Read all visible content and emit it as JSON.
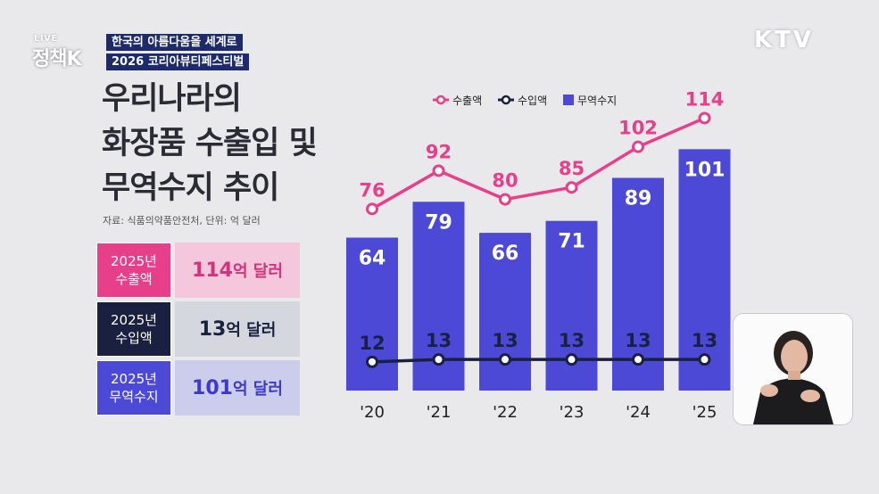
{
  "broadcast": {
    "logo_top": "LIVE",
    "logo_main": "정책K",
    "caption_line1": "한국의 아름다움을 세계로",
    "caption_line2": "2026 코리아뷰티페스티벌",
    "channel": "KTV"
  },
  "panel": {
    "title_lines": [
      "우리나라의",
      "화장품 수출입 및",
      "무역수지 추이"
    ],
    "source": "자료: 식품의약품안전처, 단위: 억 달러",
    "stats": [
      {
        "label1": "2025년",
        "label2": "수출액",
        "value": "114",
        "unit": "억 달러"
      },
      {
        "label1": "2025년",
        "label2": "수입액",
        "value": "13",
        "unit": "억 달러"
      },
      {
        "label1": "2025년",
        "label2": "무역수지",
        "value": "101",
        "unit": "억 달러"
      }
    ]
  },
  "chart_data": {
    "type": "bar",
    "categories": [
      "'20",
      "'21",
      "'22",
      "'23",
      "'24",
      "'25"
    ],
    "series": [
      {
        "name": "수출액",
        "kind": "line",
        "values": [
          76,
          92,
          80,
          85,
          102,
          114
        ],
        "color": "#e83f8a"
      },
      {
        "name": "수입액",
        "kind": "line",
        "values": [
          12,
          13,
          13,
          13,
          13,
          13
        ],
        "color": "#1a2140"
      },
      {
        "name": "무역수지",
        "kind": "bar",
        "values": [
          64,
          79,
          66,
          71,
          89,
          101
        ],
        "color": "#4c49d6"
      }
    ],
    "legend_position": "top",
    "grid": false
  },
  "colors": {
    "export": "#e83f8a",
    "import": "#1a2140",
    "balance": "#4c49d6"
  }
}
